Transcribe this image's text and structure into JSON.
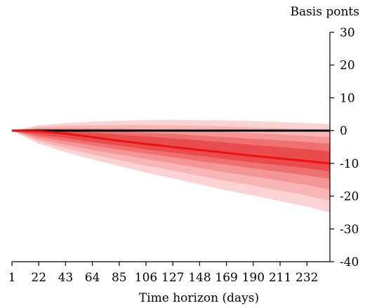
{
  "chart_data": {
    "type": "area",
    "title": "",
    "xlabel": "Time horizon (days)",
    "ylabel": "Basis ponts",
    "xlim": [
      1,
      250
    ],
    "ylim": [
      -40,
      30
    ],
    "x_ticks": [
      1,
      22,
      43,
      64,
      85,
      106,
      127,
      148,
      169,
      190,
      211,
      232
    ],
    "y_ticks": [
      30,
      20,
      10,
      0,
      -10,
      -20,
      -30,
      -40
    ],
    "grid": false,
    "legend": "none",
    "x": [
      1,
      22,
      43,
      64,
      85,
      106,
      127,
      148,
      169,
      190,
      211,
      232,
      250
    ],
    "median": {
      "name": "",
      "color": "#ee1111",
      "values": [
        0,
        -0.2,
        -0.9,
        -2.0,
        -3.1,
        -4.1,
        -5.0,
        -5.9,
        -6.8,
        -7.7,
        -8.5,
        -9.3,
        -10.0
      ]
    },
    "bands": [
      {
        "color": "#fbd3d3",
        "upper": [
          0,
          1.6,
          2.3,
          2.7,
          3.0,
          3.2,
          3.3,
          3.2,
          3.1,
          2.9,
          2.6,
          2.3,
          2.0
        ],
        "lower": [
          0,
          -4.0,
          -6.6,
          -8.8,
          -10.8,
          -12.8,
          -14.6,
          -16.4,
          -18.2,
          -19.8,
          -21.5,
          -23.2,
          -25.0
        ]
      },
      {
        "color": "#f8b5b5",
        "upper": [
          0,
          1.1,
          1.5,
          1.6,
          1.7,
          1.7,
          1.6,
          1.5,
          1.3,
          1.0,
          0.7,
          0.4,
          0.1
        ],
        "lower": [
          0,
          -3.3,
          -5.4,
          -7.3,
          -9.0,
          -10.7,
          -12.2,
          -13.8,
          -15.4,
          -16.8,
          -18.3,
          -19.8,
          -21.4
        ]
      },
      {
        "color": "#f49696",
        "upper": [
          0,
          0.7,
          0.8,
          0.7,
          0.6,
          0.4,
          0.2,
          -0.1,
          -0.4,
          -0.8,
          -1.2,
          -1.6,
          -2.0
        ],
        "lower": [
          0,
          -2.6,
          -4.3,
          -5.9,
          -7.3,
          -8.7,
          -10.0,
          -11.4,
          -12.8,
          -14.0,
          -15.3,
          -16.6,
          -18.0
        ]
      },
      {
        "color": "#ee7070",
        "upper": [
          0,
          0.4,
          0.3,
          0.0,
          -0.3,
          -0.6,
          -1.0,
          -1.5,
          -2.0,
          -2.5,
          -3.0,
          -3.5,
          -4.0
        ],
        "lower": [
          0,
          -1.9,
          -3.2,
          -4.5,
          -5.8,
          -7.0,
          -8.1,
          -9.3,
          -10.4,
          -11.5,
          -12.6,
          -13.7,
          -14.8
        ]
      },
      {
        "color": "#e84c4c",
        "upper": [
          0,
          0.2,
          -0.1,
          -0.6,
          -1.2,
          -1.8,
          -2.4,
          -3.0,
          -3.7,
          -4.4,
          -5.0,
          -5.7,
          -6.3
        ],
        "lower": [
          0,
          -1.2,
          -2.3,
          -3.5,
          -4.6,
          -5.7,
          -6.7,
          -7.7,
          -8.7,
          -9.7,
          -10.6,
          -11.5,
          -12.5
        ]
      }
    ],
    "zero_line": {
      "y": 0,
      "color": "#000000"
    }
  }
}
